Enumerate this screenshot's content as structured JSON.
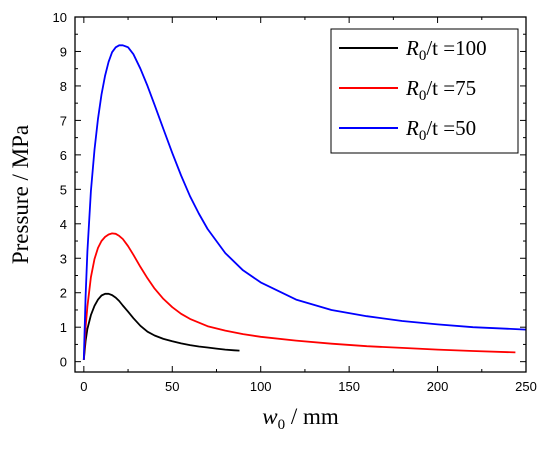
{
  "chart_data": {
    "type": "line",
    "title": "",
    "xlabel": "w0 / mm",
    "xlabel_parts": {
      "var": "w",
      "sub": "0",
      "unit": " / mm"
    },
    "ylabel": "Pressure / MPa",
    "xlim": [
      -5,
      250
    ],
    "ylim": [
      -0.3,
      10
    ],
    "xticks": [
      0,
      50,
      100,
      150,
      200,
      250
    ],
    "yticks": [
      0,
      1,
      2,
      3,
      4,
      5,
      6,
      7,
      8,
      9,
      10
    ],
    "grid": false,
    "legend_position": "top-right",
    "series": [
      {
        "name": "R0/t =100",
        "name_parts": {
          "var": "R",
          "sub": "0",
          "rest": "/t =100"
        },
        "color": "#000000",
        "points": [
          [
            0,
            0.05
          ],
          [
            1,
            0.6
          ],
          [
            2,
            0.95
          ],
          [
            4,
            1.35
          ],
          [
            6,
            1.62
          ],
          [
            8,
            1.8
          ],
          [
            10,
            1.92
          ],
          [
            12,
            1.97
          ],
          [
            14,
            1.97
          ],
          [
            16,
            1.93
          ],
          [
            18,
            1.86
          ],
          [
            20,
            1.76
          ],
          [
            22,
            1.63
          ],
          [
            25,
            1.45
          ],
          [
            28,
            1.26
          ],
          [
            32,
            1.04
          ],
          [
            36,
            0.87
          ],
          [
            40,
            0.76
          ],
          [
            45,
            0.66
          ],
          [
            50,
            0.59
          ],
          [
            55,
            0.53
          ],
          [
            60,
            0.48
          ],
          [
            65,
            0.44
          ],
          [
            70,
            0.41
          ],
          [
            75,
            0.38
          ],
          [
            80,
            0.35
          ],
          [
            85,
            0.33
          ],
          [
            88,
            0.32
          ]
        ]
      },
      {
        "name": "R0/t =75",
        "name_parts": {
          "var": "R",
          "sub": "0",
          "rest": "/t =75"
        },
        "color": "#ff0000",
        "points": [
          [
            0,
            0.05
          ],
          [
            1,
            1.0
          ],
          [
            2,
            1.6
          ],
          [
            4,
            2.45
          ],
          [
            6,
            2.98
          ],
          [
            8,
            3.3
          ],
          [
            10,
            3.5
          ],
          [
            12,
            3.62
          ],
          [
            14,
            3.69
          ],
          [
            16,
            3.72
          ],
          [
            18,
            3.71
          ],
          [
            20,
            3.65
          ],
          [
            22,
            3.56
          ],
          [
            25,
            3.35
          ],
          [
            28,
            3.1
          ],
          [
            32,
            2.75
          ],
          [
            36,
            2.42
          ],
          [
            40,
            2.12
          ],
          [
            45,
            1.82
          ],
          [
            50,
            1.58
          ],
          [
            55,
            1.39
          ],
          [
            60,
            1.24
          ],
          [
            70,
            1.03
          ],
          [
            80,
            0.9
          ],
          [
            90,
            0.8
          ],
          [
            100,
            0.72
          ],
          [
            120,
            0.61
          ],
          [
            140,
            0.52
          ],
          [
            160,
            0.45
          ],
          [
            180,
            0.4
          ],
          [
            200,
            0.35
          ],
          [
            220,
            0.31
          ],
          [
            244,
            0.27
          ]
        ]
      },
      {
        "name": "R0/t =50",
        "name_parts": {
          "var": "R",
          "sub": "0",
          "rest": "/t =50"
        },
        "color": "#0000ff",
        "points": [
          [
            0,
            0.05
          ],
          [
            1,
            1.9
          ],
          [
            2,
            3.2
          ],
          [
            4,
            4.95
          ],
          [
            6,
            6.15
          ],
          [
            8,
            7.05
          ],
          [
            10,
            7.75
          ],
          [
            12,
            8.3
          ],
          [
            14,
            8.7
          ],
          [
            16,
            8.98
          ],
          [
            18,
            9.12
          ],
          [
            20,
            9.18
          ],
          [
            22,
            9.18
          ],
          [
            25,
            9.12
          ],
          [
            28,
            8.92
          ],
          [
            32,
            8.5
          ],
          [
            36,
            8.0
          ],
          [
            40,
            7.45
          ],
          [
            45,
            6.75
          ],
          [
            50,
            6.05
          ],
          [
            55,
            5.4
          ],
          [
            60,
            4.8
          ],
          [
            65,
            4.3
          ],
          [
            70,
            3.85
          ],
          [
            80,
            3.15
          ],
          [
            90,
            2.65
          ],
          [
            100,
            2.3
          ],
          [
            120,
            1.8
          ],
          [
            140,
            1.5
          ],
          [
            160,
            1.32
          ],
          [
            180,
            1.18
          ],
          [
            200,
            1.08
          ],
          [
            220,
            1.0
          ],
          [
            250,
            0.93
          ]
        ]
      }
    ]
  }
}
